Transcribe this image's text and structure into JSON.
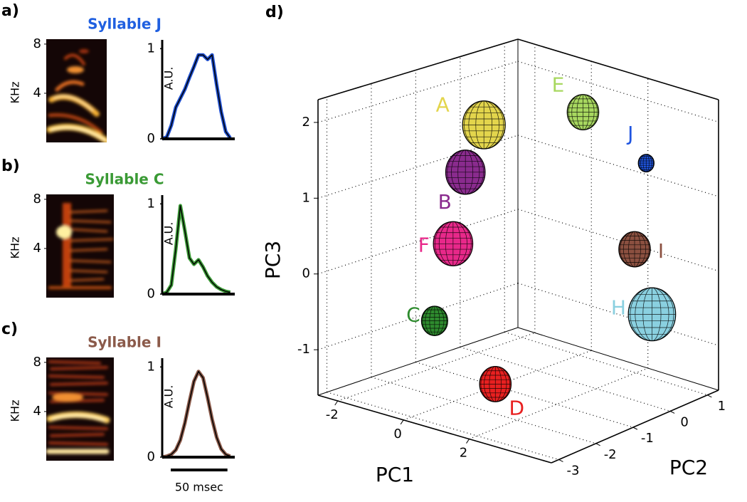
{
  "chart_data": [
    {
      "type": "spectrogram",
      "panel": "a)",
      "title": "Syllable J",
      "title_color": "#1f5fe0",
      "ylabel": "KHz",
      "ylim": [
        0,
        8.4
      ],
      "yticks": [
        4,
        8
      ]
    },
    {
      "type": "line",
      "ylabel": "A.U.",
      "x": [
        0,
        4,
        8,
        12,
        16,
        20,
        24,
        28,
        32,
        36,
        40,
        44,
        48,
        52,
        56,
        60
      ],
      "xlim": [
        0,
        64
      ],
      "ylim": [
        0,
        1.05
      ],
      "yticks": [
        0,
        1
      ],
      "series": [
        {
          "color": "#2050d0",
          "values": [
            0,
            0.02,
            0.15,
            0.35,
            0.45,
            0.55,
            0.68,
            0.8,
            0.93,
            0.93,
            0.88,
            0.93,
            0.6,
            0.3,
            0.08,
            0.01
          ]
        }
      ]
    },
    {
      "type": "spectrogram",
      "panel": "b)",
      "title": "Syllable C",
      "title_color": "#3a9a35",
      "ylabel": "KHz",
      "ylim": [
        0,
        8.4
      ],
      "yticks": [
        4,
        8
      ]
    },
    {
      "type": "line",
      "ylabel": "A.U.",
      "x": [
        0,
        4,
        8,
        12,
        16,
        20,
        24,
        28,
        32,
        36,
        40,
        44,
        48,
        52,
        56,
        60
      ],
      "xlim": [
        0,
        64
      ],
      "ylim": [
        0,
        1.05
      ],
      "yticks": [
        0,
        1
      ],
      "series": [
        {
          "color": "#3a9a35",
          "values": [
            0,
            0.02,
            0.1,
            0.5,
            0.98,
            0.7,
            0.4,
            0.33,
            0.38,
            0.3,
            0.2,
            0.13,
            0.08,
            0.05,
            0.03,
            0.02
          ]
        }
      ]
    },
    {
      "type": "spectrogram",
      "panel": "c)",
      "title": "Syllable I",
      "title_color": "#8b5a4a",
      "ylabel": "KHz",
      "ylim": [
        0,
        8.4
      ],
      "yticks": [
        4,
        8
      ]
    },
    {
      "type": "line",
      "ylabel": "A.U.",
      "x": [
        0,
        4,
        8,
        12,
        16,
        20,
        24,
        28,
        32,
        36,
        40,
        44,
        48,
        52,
        56,
        60
      ],
      "xlim": [
        0,
        64
      ],
      "ylim": [
        0,
        1.05
      ],
      "yticks": [
        0,
        1
      ],
      "scale_bar": {
        "value": 50,
        "label": "50 msec"
      },
      "series": [
        {
          "color": "#8b5a4a",
          "values": [
            0,
            0.01,
            0.03,
            0.08,
            0.19,
            0.38,
            0.62,
            0.84,
            0.95,
            0.88,
            0.66,
            0.42,
            0.22,
            0.09,
            0.03,
            0.01
          ]
        }
      ]
    },
    {
      "type": "scatter3d",
      "panel": "d)",
      "xlabel": "PC1",
      "ylabel": "PC2",
      "zlabel": "PC3",
      "xlim": [
        -2.6,
        4.5
      ],
      "ylim": [
        -3.2,
        1.3
      ],
      "zlim": [
        -1.6,
        2.3
      ],
      "xticks": [
        -2,
        0,
        2
      ],
      "yticks": [
        -3,
        -2,
        -1,
        0,
        1
      ],
      "zticks": [
        -1,
        0,
        1,
        2
      ],
      "grid": true,
      "points": [
        {
          "label": "B",
          "color": "#8a2b8e",
          "x": -0.7,
          "y": -1.2,
          "z": 1.2,
          "radius": 0.6
        },
        {
          "label": "A",
          "color": "#e3d54c",
          "x": -0.1,
          "y": -1.2,
          "z": 1.9,
          "radius": 0.65
        },
        {
          "label": "E",
          "color": "#a8d860",
          "x": 1.0,
          "y": 0.4,
          "z": 1.9,
          "radius": 0.48
        },
        {
          "label": "J",
          "color": "#1f55e0",
          "x": 2.9,
          "y": 0.6,
          "z": 1.4,
          "radius": 0.24
        },
        {
          "label": "F",
          "color": "#e8288a",
          "x": -1.1,
          "y": -1.2,
          "z": 0.2,
          "radius": 0.6
        },
        {
          "label": "I",
          "color": "#8b5040",
          "x": 2.5,
          "y": 0.6,
          "z": 0.2,
          "radius": 0.48
        },
        {
          "label": "C",
          "color": "#2e8b2e",
          "x": -1.7,
          "y": -1.2,
          "z": -0.9,
          "radius": 0.4
        },
        {
          "label": "H",
          "color": "#8ad0e0",
          "x": 3.1,
          "y": 0.6,
          "z": -0.6,
          "radius": 0.72
        },
        {
          "label": "D",
          "color": "#e82020",
          "x": 1.7,
          "y": -2.3,
          "z": -1.1,
          "radius": 0.48
        }
      ]
    }
  ]
}
